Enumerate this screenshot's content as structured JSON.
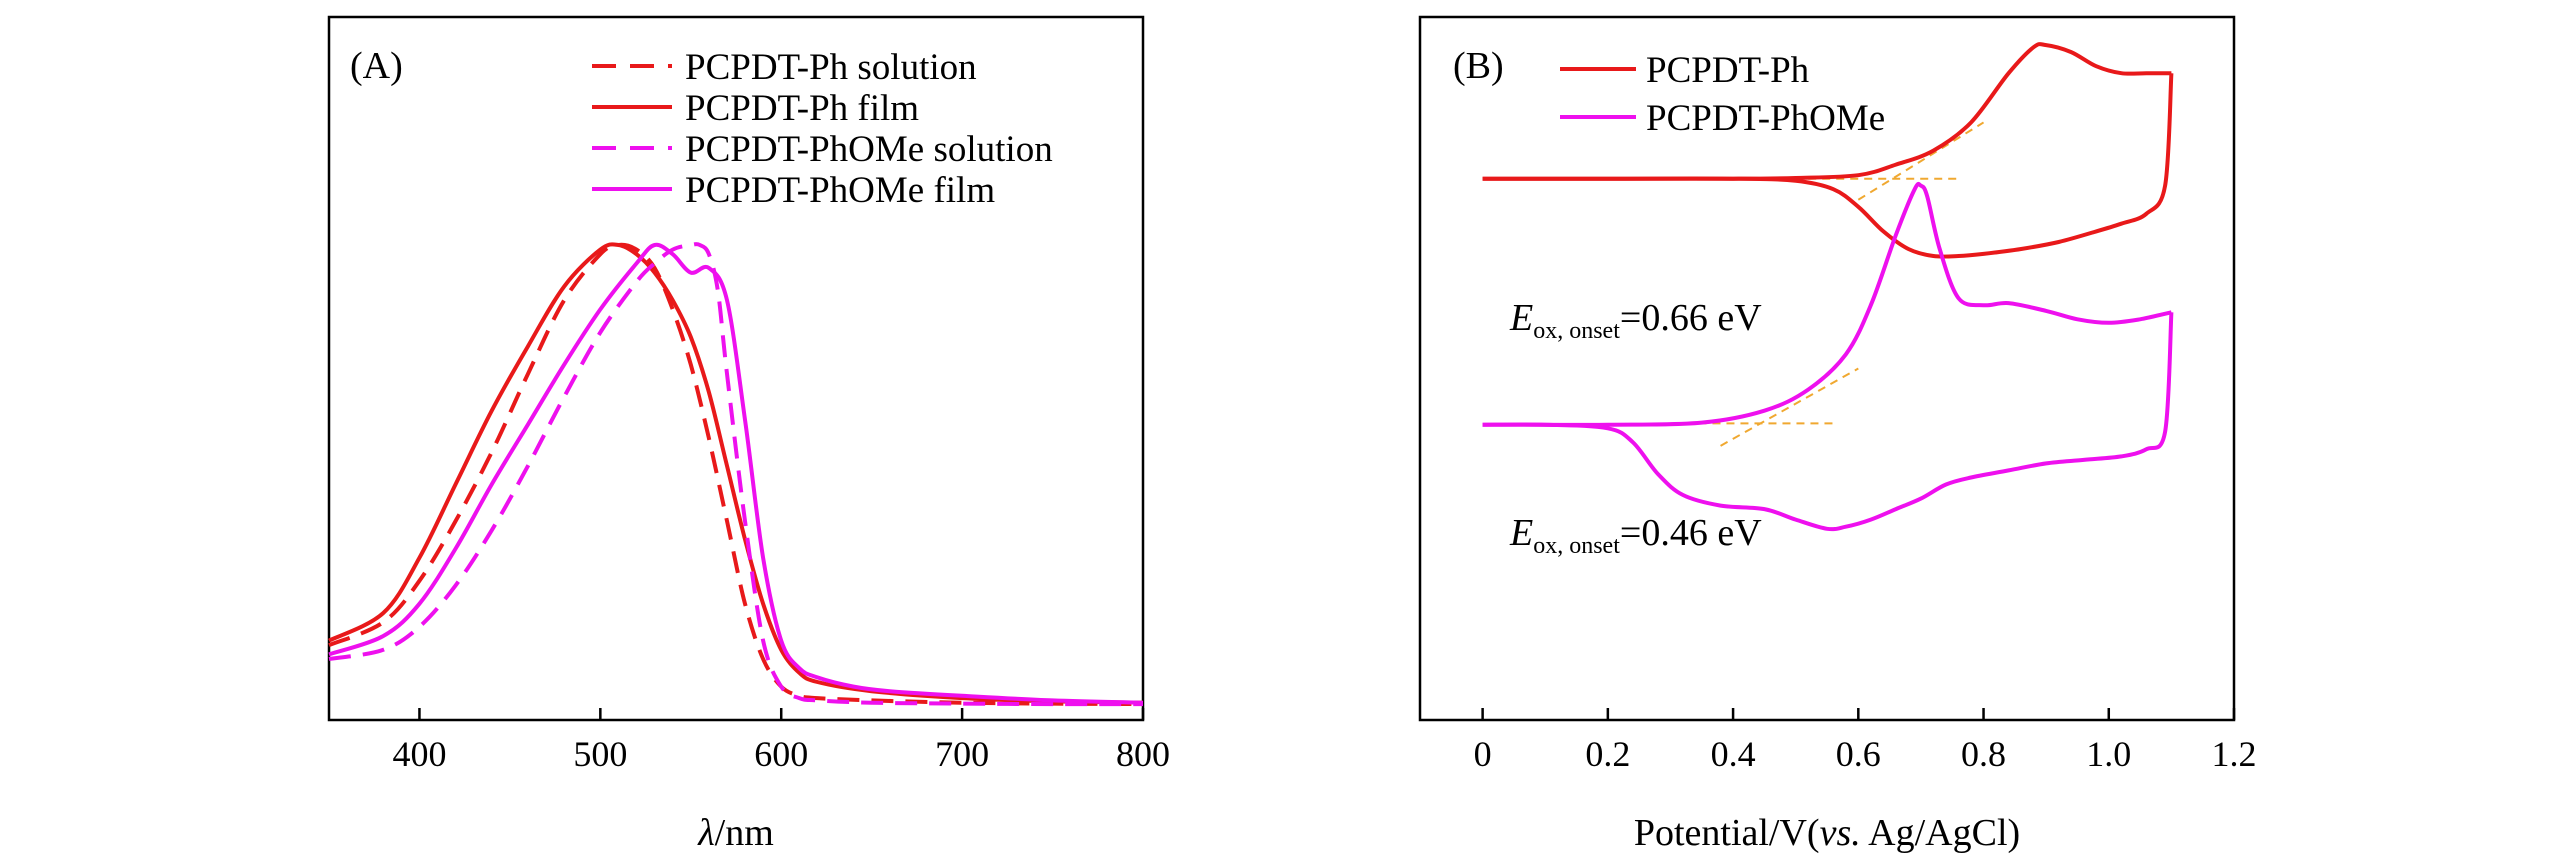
{
  "chart_data": [
    {
      "panel": "A",
      "type": "line",
      "panel_label": "(A)",
      "xlabel_symbol": "λ",
      "xlabel_unit": "/nm",
      "ylabel": "",
      "xlim": [
        350,
        800
      ],
      "ylim": [
        0,
        1.08
      ],
      "xticks": [
        400,
        500,
        600,
        700,
        800
      ],
      "grid": false,
      "legend_position": "top-right",
      "series": [
        {
          "name": "PCPDT-Ph solution",
          "color": "#e8191a",
          "dash": "dashed",
          "x": [
            350,
            380,
            400,
            420,
            440,
            460,
            480,
            500,
            510,
            520,
            530,
            540,
            550,
            560,
            570,
            580,
            590,
            600,
            610,
            620,
            650,
            700,
            750,
            800
          ],
          "y": [
            0.13,
            0.18,
            0.27,
            0.4,
            0.55,
            0.72,
            0.88,
            0.98,
            1.0,
            0.99,
            0.95,
            0.86,
            0.74,
            0.58,
            0.4,
            0.22,
            0.1,
            0.04,
            0.02,
            0.015,
            0.01,
            0.005,
            0.003,
            0.002
          ]
        },
        {
          "name": "PCPDT-Ph film",
          "color": "#e8191a",
          "dash": "solid",
          "x": [
            350,
            380,
            400,
            420,
            440,
            460,
            480,
            500,
            510,
            520,
            530,
            540,
            550,
            560,
            570,
            580,
            590,
            600,
            610,
            620,
            650,
            700,
            750,
            800
          ],
          "y": [
            0.14,
            0.2,
            0.32,
            0.48,
            0.64,
            0.78,
            0.91,
            0.99,
            1.0,
            0.98,
            0.94,
            0.88,
            0.8,
            0.68,
            0.52,
            0.36,
            0.22,
            0.12,
            0.07,
            0.05,
            0.03,
            0.015,
            0.008,
            0.005
          ]
        },
        {
          "name": "PCPDT-PhOMe solution",
          "color": "#ee10ee",
          "dash": "dashed",
          "x": [
            350,
            380,
            400,
            420,
            440,
            460,
            480,
            500,
            520,
            530,
            540,
            550,
            555,
            560,
            565,
            570,
            580,
            590,
            600,
            610,
            620,
            650,
            700,
            750,
            800
          ],
          "y": [
            0.1,
            0.12,
            0.17,
            0.26,
            0.38,
            0.52,
            0.67,
            0.81,
            0.92,
            0.96,
            0.99,
            1.0,
            1.0,
            0.98,
            0.9,
            0.72,
            0.4,
            0.14,
            0.04,
            0.015,
            0.01,
            0.005,
            0.003,
            0.002,
            0.002
          ]
        },
        {
          "name": "PCPDT-PhOMe film",
          "color": "#ee10ee",
          "dash": "solid",
          "x": [
            350,
            380,
            400,
            420,
            440,
            460,
            480,
            500,
            520,
            530,
            540,
            550,
            560,
            570,
            580,
            590,
            600,
            610,
            620,
            640,
            660,
            700,
            750,
            800
          ],
          "y": [
            0.11,
            0.15,
            0.22,
            0.34,
            0.48,
            0.61,
            0.74,
            0.86,
            0.96,
            1.0,
            0.98,
            0.94,
            0.95,
            0.88,
            0.62,
            0.32,
            0.14,
            0.08,
            0.06,
            0.04,
            0.03,
            0.02,
            0.01,
            0.005
          ]
        }
      ]
    },
    {
      "panel": "B",
      "type": "line",
      "panel_label": "(B)",
      "xlabel": "Potential/V(",
      "xlabel_italic": "vs.",
      "xlabel_tail": " Ag/AgCl)",
      "ylabel": "",
      "xlim": [
        -0.1,
        1.2
      ],
      "ylim": [
        0,
        1
      ],
      "xticks": [
        0,
        0.2,
        0.4,
        0.6,
        0.8,
        1.0,
        1.2
      ],
      "xtick_labels": [
        "0",
        "0.2",
        "0.4",
        "0.6",
        "0.8",
        "1.0",
        "1.2"
      ],
      "grid": false,
      "legend_position": "top-left",
      "annotations": [
        {
          "symbol": "E",
          "subscript": "ox, onset",
          "text": "=0.66 eV",
          "for_series": "PCPDT-Ph"
        },
        {
          "symbol": "E",
          "subscript": "ox, onset",
          "text": "=0.46 eV",
          "for_series": "PCPDT-PhOMe"
        }
      ],
      "onset_tangent_color": "#f0a830",
      "series": [
        {
          "name": "PCPDT-Ph",
          "color": "#e8191a",
          "forward": {
            "x": [
              0,
              0.2,
              0.4,
              0.5,
              0.6,
              0.66,
              0.72,
              0.78,
              0.84,
              0.88,
              0.9,
              0.94,
              0.98,
              1.02,
              1.06,
              1.1
            ],
            "y": [
              0.77,
              0.77,
              0.77,
              0.771,
              0.775,
              0.79,
              0.81,
              0.85,
              0.92,
              0.957,
              0.96,
              0.95,
              0.93,
              0.92,
              0.92,
              0.92
            ]
          },
          "reverse": {
            "x": [
              1.1,
              1.09,
              1.06,
              1.02,
              0.98,
              0.92,
              0.86,
              0.8,
              0.76,
              0.72,
              0.68,
              0.64,
              0.6,
              0.56,
              0.5,
              0.4,
              0.2,
              0
            ],
            "y": [
              0.92,
              0.76,
              0.72,
              0.706,
              0.695,
              0.68,
              0.67,
              0.663,
              0.66,
              0.66,
              0.67,
              0.695,
              0.73,
              0.755,
              0.767,
              0.77,
              0.77,
              0.77
            ]
          }
        },
        {
          "name": "PCPDT-PhOMe",
          "color": "#ee10ee",
          "forward": {
            "x": [
              0,
              0.2,
              0.35,
              0.45,
              0.52,
              0.58,
              0.62,
              0.66,
              0.69,
              0.7,
              0.71,
              0.73,
              0.76,
              0.8,
              0.84,
              0.9,
              0.95,
              1.0,
              1.05,
              1.1
            ],
            "y": [
              0.42,
              0.42,
              0.423,
              0.44,
              0.47,
              0.52,
              0.59,
              0.69,
              0.755,
              0.76,
              0.745,
              0.67,
              0.6,
              0.59,
              0.593,
              0.582,
              0.57,
              0.565,
              0.57,
              0.58
            ]
          },
          "reverse": {
            "x": [
              1.1,
              1.09,
              1.06,
              1.02,
              0.96,
              0.9,
              0.84,
              0.78,
              0.74,
              0.7,
              0.66,
              0.62,
              0.58,
              0.55,
              0.5,
              0.45,
              0.38,
              0.32,
              0.28,
              0.24,
              0.2,
              0.1,
              0
            ],
            "y": [
              0.58,
              0.41,
              0.385,
              0.375,
              0.37,
              0.365,
              0.355,
              0.345,
              0.335,
              0.315,
              0.3,
              0.285,
              0.275,
              0.272,
              0.285,
              0.3,
              0.305,
              0.32,
              0.35,
              0.395,
              0.415,
              0.42,
              0.42
            ]
          }
        }
      ]
    }
  ]
}
